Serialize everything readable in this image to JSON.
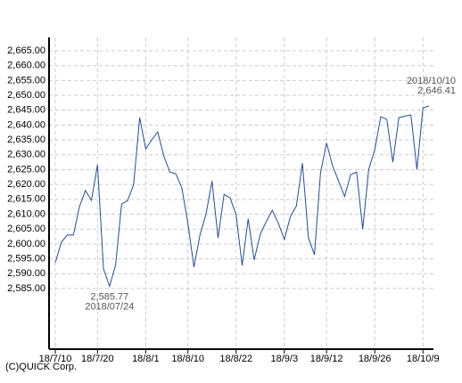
{
  "chart_data": {
    "type": "line",
    "categories": [
      "18/7/10",
      null,
      null,
      null,
      null,
      null,
      null,
      "18/7/20",
      null,
      null,
      null,
      null,
      null,
      null,
      null,
      "18/8/1",
      null,
      null,
      null,
      null,
      null,
      null,
      "18/8/10",
      null,
      null,
      null,
      null,
      null,
      null,
      null,
      "18/8/22",
      null,
      null,
      null,
      null,
      null,
      null,
      null,
      "18/9/3",
      null,
      null,
      null,
      null,
      null,
      null,
      "18/9/12",
      null,
      null,
      null,
      null,
      null,
      null,
      null,
      "18/9/26",
      null,
      null,
      null,
      null,
      null,
      null,
      null,
      "18/10/9",
      null
    ],
    "values": [
      2593.7,
      2600.6,
      2603,
      2603,
      2612.5,
      2618,
      2614.7,
      2626.6,
      2591.6,
      2585.77,
      2592.8,
      2613.4,
      2614.6,
      2620,
      2642.5,
      2632,
      2635,
      2637.7,
      2629.6,
      2624.2,
      2623.6,
      2618.8,
      2607,
      2592.2,
      2603,
      2610,
      2621.2,
      2602,
      2616.7,
      2615.5,
      2609.8,
      2592.8,
      2608.4,
      2594.6,
      2603.3,
      2607.5,
      2611.3,
      2607,
      2601.5,
      2609.2,
      2612.8,
      2627.2,
      2602,
      2596.4,
      2623.9,
      2634,
      2626.3,
      2621.2,
      2616,
      2623.3,
      2624.2,
      2605,
      2625.1,
      2631.7,
      2642.8,
      2641.9,
      2627.5,
      2642.5,
      2643,
      2643.4,
      2625.1,
      2645.8,
      2646.41
    ],
    "color": "#1f4e9c",
    "ylim": [
      2564.6,
      2669.5
    ],
    "yticks": [
      {
        "value": 2585,
        "label": "2,585.00"
      },
      {
        "value": 2590,
        "label": "2,590.00"
      },
      {
        "value": 2595,
        "label": "2,595.00"
      },
      {
        "value": 2600,
        "label": "2,600.00"
      },
      {
        "value": 2605,
        "label": "2,605.00"
      },
      {
        "value": 2610,
        "label": "2,610.00"
      },
      {
        "value": 2615,
        "label": "2,615.00"
      },
      {
        "value": 2620,
        "label": "2,620.00"
      },
      {
        "value": 2625,
        "label": "2,625.00"
      },
      {
        "value": 2630,
        "label": "2,630.00"
      },
      {
        "value": 2635,
        "label": "2,635.00"
      },
      {
        "value": 2640,
        "label": "2,640.00"
      },
      {
        "value": 2645,
        "label": "2,645.00"
      },
      {
        "value": 2650,
        "label": "2,650.00"
      },
      {
        "value": 2655,
        "label": "2,655.00"
      },
      {
        "value": 2660,
        "label": "2,660.00"
      },
      {
        "value": 2665,
        "label": "2,665.00"
      }
    ],
    "grid": true,
    "annotations": [
      {
        "text": "2,585.77",
        "index": 9
      },
      {
        "text": "2018/07/24",
        "index": 9
      },
      {
        "text": "2018/10/10",
        "index": 62
      },
      {
        "text": "2,646.41",
        "index": 62
      }
    ],
    "footer": "(C)QUICK Corp."
  }
}
